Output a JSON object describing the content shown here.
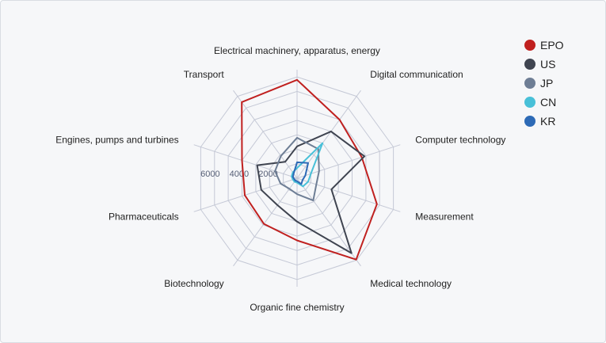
{
  "chart_data": {
    "type": "radar",
    "categories": [
      "Electrical machinery, apparatus, energy",
      "Digital communication",
      "Computer technology",
      "Measurement",
      "Medical technology",
      "Organic fine chemistry",
      "Biotechnology",
      "Pharmaceuticals",
      "Engines, pumps and turbines",
      "Transport"
    ],
    "radial_ticks": [
      "2000",
      "4000",
      "6000"
    ],
    "rmax": 7500,
    "grid": true,
    "legend_position": "top-right",
    "series": [
      {
        "name": "EPO",
        "color": "#c0201f",
        "values": [
          6800,
          5000,
          4700,
          5800,
          6950,
          4300,
          3900,
          3800,
          4000,
          6500
        ]
      },
      {
        "name": "US",
        "color": "#3f4450",
        "values": [
          2200,
          4000,
          4900,
          2500,
          6400,
          3000,
          2300,
          2600,
          2900,
          1400
        ]
      },
      {
        "name": "JP",
        "color": "#6e7e95",
        "values": [
          2800,
          2500,
          1600,
          1400,
          1900,
          1100,
          900,
          1200,
          1600,
          1900
        ]
      },
      {
        "name": "CN",
        "color": "#48c0d8",
        "values": [
          700,
          3000,
          1000,
          800,
          700,
          300,
          300,
          300,
          400,
          500
        ]
      },
      {
        "name": "KR",
        "color": "#2d6ab6",
        "values": [
          1100,
          1300,
          600,
          400,
          500,
          200,
          200,
          200,
          300,
          400
        ]
      }
    ]
  }
}
